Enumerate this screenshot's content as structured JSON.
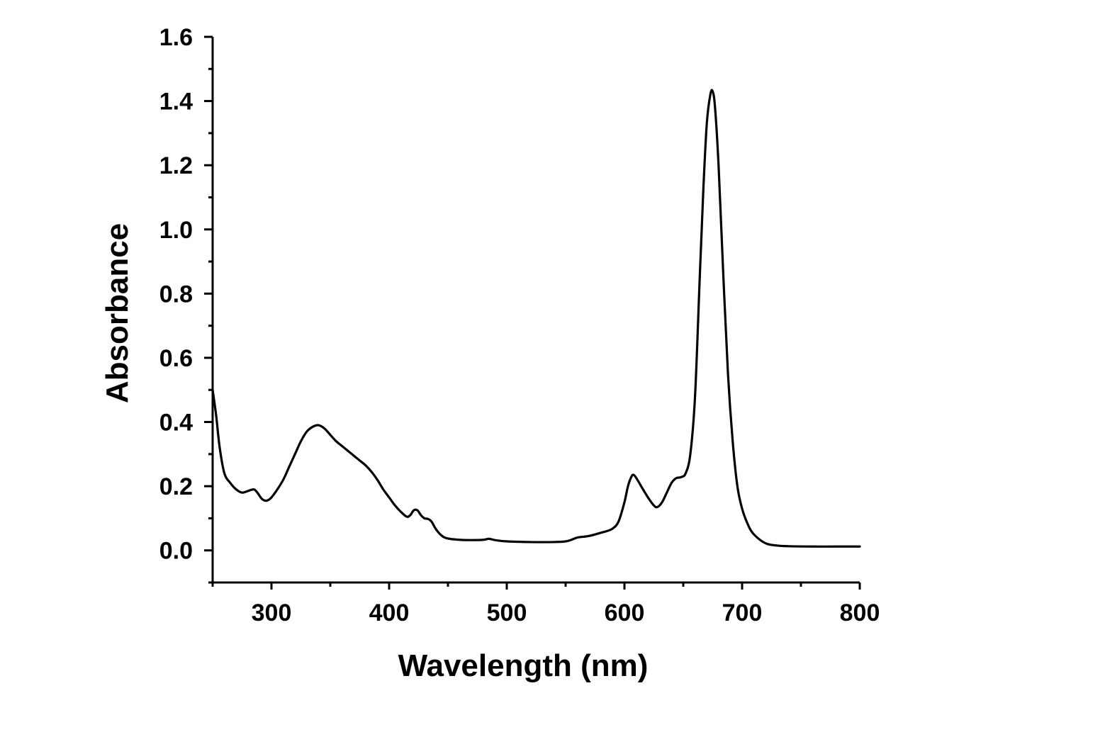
{
  "chart_data": {
    "type": "line",
    "title": "",
    "xlabel": "Wavelength (nm)",
    "ylabel": "Absorbance",
    "xlim": [
      250,
      800
    ],
    "ylim": [
      -0.1,
      1.6
    ],
    "x_major_ticks": [
      300,
      400,
      500,
      600,
      700,
      800
    ],
    "x_minor_ticks": [
      250,
      350,
      450,
      550,
      650,
      750
    ],
    "y_major_ticks": [
      0.0,
      0.2,
      0.4,
      0.6,
      0.8,
      1.0,
      1.2,
      1.4,
      1.6
    ],
    "y_minor_ticks": [
      -0.1,
      0.1,
      0.3,
      0.5,
      0.7,
      0.9,
      1.1,
      1.3,
      1.5
    ],
    "x_tick_labels": [
      "300",
      "400",
      "500",
      "600",
      "700",
      "800"
    ],
    "y_tick_labels": [
      "0.0",
      "0.2",
      "0.4",
      "0.6",
      "0.8",
      "1.0",
      "1.2",
      "1.4",
      "1.6"
    ],
    "grid": false,
    "line_color": "#000000",
    "series": [
      {
        "x": [
          250,
          253,
          256,
          260,
          265,
          270,
          275,
          280,
          285,
          288,
          292,
          296,
          300,
          305,
          310,
          315,
          320,
          325,
          330,
          335,
          340,
          345,
          350,
          355,
          360,
          365,
          370,
          375,
          380,
          385,
          390,
          395,
          400,
          405,
          410,
          415,
          418,
          421,
          424,
          427,
          430,
          433,
          436,
          440,
          445,
          450,
          460,
          470,
          480,
          485,
          490,
          500,
          520,
          540,
          550,
          555,
          560,
          570,
          580,
          585,
          590,
          595,
          600,
          603,
          606,
          608,
          611,
          615,
          620,
          625,
          628,
          632,
          636,
          640,
          644,
          648,
          652,
          656,
          660,
          664,
          667,
          670,
          673,
          675,
          677,
          680,
          684,
          688,
          692,
          696,
          700,
          705,
          710,
          720,
          730,
          740,
          760,
          780,
          800
        ],
        "y": [
          0.5,
          0.42,
          0.32,
          0.24,
          0.21,
          0.19,
          0.18,
          0.185,
          0.19,
          0.18,
          0.16,
          0.155,
          0.165,
          0.19,
          0.22,
          0.26,
          0.3,
          0.34,
          0.37,
          0.385,
          0.39,
          0.38,
          0.36,
          0.34,
          0.325,
          0.31,
          0.295,
          0.28,
          0.265,
          0.245,
          0.22,
          0.19,
          0.165,
          0.14,
          0.12,
          0.105,
          0.11,
          0.125,
          0.125,
          0.11,
          0.1,
          0.098,
          0.09,
          0.065,
          0.045,
          0.037,
          0.033,
          0.032,
          0.033,
          0.036,
          0.032,
          0.028,
          0.026,
          0.026,
          0.028,
          0.033,
          0.04,
          0.045,
          0.055,
          0.06,
          0.068,
          0.09,
          0.15,
          0.2,
          0.23,
          0.235,
          0.22,
          0.195,
          0.165,
          0.14,
          0.135,
          0.15,
          0.18,
          0.21,
          0.225,
          0.228,
          0.24,
          0.3,
          0.48,
          0.85,
          1.12,
          1.33,
          1.42,
          1.43,
          1.38,
          1.2,
          0.86,
          0.55,
          0.34,
          0.2,
          0.13,
          0.08,
          0.05,
          0.022,
          0.015,
          0.013,
          0.012,
          0.012,
          0.012
        ]
      }
    ]
  }
}
